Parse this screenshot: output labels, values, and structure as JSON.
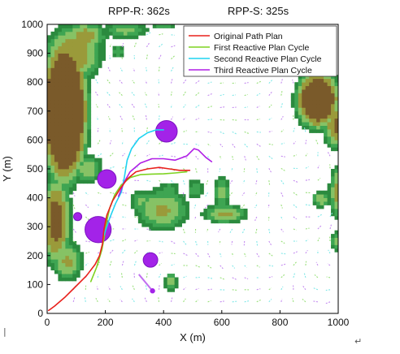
{
  "captions": {
    "left": "RPP-R: 362s",
    "right": "RPP-S: 325s"
  },
  "chart_data": {
    "type": "line",
    "title": "",
    "xlabel": "X (m)",
    "ylabel": "Y (m)",
    "xlim": [
      0,
      1000
    ],
    "ylim": [
      0,
      1000
    ],
    "x_ticks": [
      "0",
      "200",
      "400",
      "600",
      "800",
      "1000"
    ],
    "y_ticks": [
      "0",
      "100",
      "200",
      "300",
      "400",
      "500",
      "600",
      "700",
      "800",
      "900",
      "1000"
    ],
    "legend_position": "top-right",
    "background": "terrain elevation map with ocean current vector field",
    "series": [
      {
        "name": "Original Path Plan",
        "color": "#e8211c",
        "x": [
          5,
          25,
          60,
          95,
          135,
          165,
          180,
          190,
          195,
          205,
          225,
          250,
          275,
          305,
          345,
          385,
          420,
          455,
          490
        ],
        "y": [
          10,
          25,
          55,
          90,
          130,
          170,
          200,
          240,
          290,
          340,
          390,
          430,
          465,
          490,
          500,
          505,
          500,
          495,
          495
        ]
      },
      {
        "name": "First Reactive Plan Cycle",
        "color": "#7ed321",
        "x": [
          150,
          170,
          188,
          198,
          205,
          215,
          232,
          255,
          285,
          320,
          360,
          400,
          440,
          480
        ],
        "y": [
          110,
          160,
          220,
          275,
          320,
          365,
          410,
          445,
          470,
          480,
          482,
          483,
          486,
          490
        ]
      },
      {
        "name": "Second Reactive Plan Cycle",
        "color": "#1fd3f0",
        "x": [
          195,
          215,
          235,
          255,
          265,
          275,
          290,
          315,
          345,
          375,
          400
        ],
        "y": [
          270,
          330,
          380,
          420,
          470,
          530,
          570,
          605,
          625,
          635,
          635
        ]
      },
      {
        "name": "Third Reactive Plan Cycle",
        "color": "#b01ee6",
        "x": [
          245,
          265,
          285,
          320,
          360,
          400,
          440,
          480,
          505,
          520,
          545,
          565
        ],
        "y": [
          405,
          455,
          490,
          520,
          535,
          535,
          530,
          545,
          570,
          565,
          540,
          525
        ]
      }
    ],
    "obstacles": [
      {
        "x": 410,
        "y": 630,
        "r": 37
      },
      {
        "x": 205,
        "y": 465,
        "r": 32
      },
      {
        "x": 175,
        "y": 290,
        "r": 45
      },
      {
        "x": 105,
        "y": 335,
        "r": 14
      },
      {
        "x": 355,
        "y": 185,
        "r": 25
      }
    ],
    "moving_obstacle": {
      "from": {
        "x": 315,
        "y": 135
      },
      "to": {
        "x": 362,
        "y": 78
      }
    }
  },
  "marks": {
    "cursor": "|",
    "return": "↵"
  }
}
